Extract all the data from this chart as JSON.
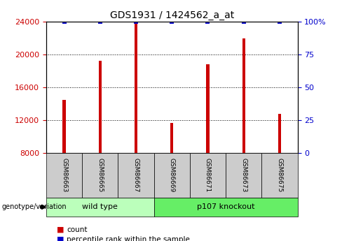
{
  "title": "GDS1931 / 1424562_a_at",
  "samples": [
    "GSM86663",
    "GSM86665",
    "GSM86667",
    "GSM86669",
    "GSM86671",
    "GSM86673",
    "GSM86675"
  ],
  "counts": [
    14500,
    19200,
    24000,
    11700,
    18800,
    22000,
    12800
  ],
  "percentile_y_data": [
    24000,
    24000,
    24000,
    24000,
    24000,
    24000,
    24000
  ],
  "ymin": 8000,
  "ymax": 24000,
  "yticks": [
    8000,
    12000,
    16000,
    20000,
    24000
  ],
  "y2ticks": [
    0,
    25,
    50,
    75,
    100
  ],
  "y2tick_labels": [
    "0",
    "25",
    "50",
    "75",
    "100%"
  ],
  "bar_color": "#cc0000",
  "dot_color": "#0000cc",
  "group1_label": "wild type",
  "group2_label": "p107 knockout",
  "group1_indices": [
    0,
    1,
    2
  ],
  "group2_indices": [
    3,
    4,
    5,
    6
  ],
  "group1_color": "#bbffbb",
  "group2_color": "#66ee66",
  "xlabel_annotation": "genotype/variation",
  "legend_count_label": "count",
  "legend_pct_label": "percentile rank within the sample",
  "background_color": "#ffffff",
  "tick_label_color_left": "#cc0000",
  "tick_label_color_right": "#0000cc",
  "bar_width": 0.08,
  "sample_box_color": "#cccccc",
  "grid_style": "dotted"
}
